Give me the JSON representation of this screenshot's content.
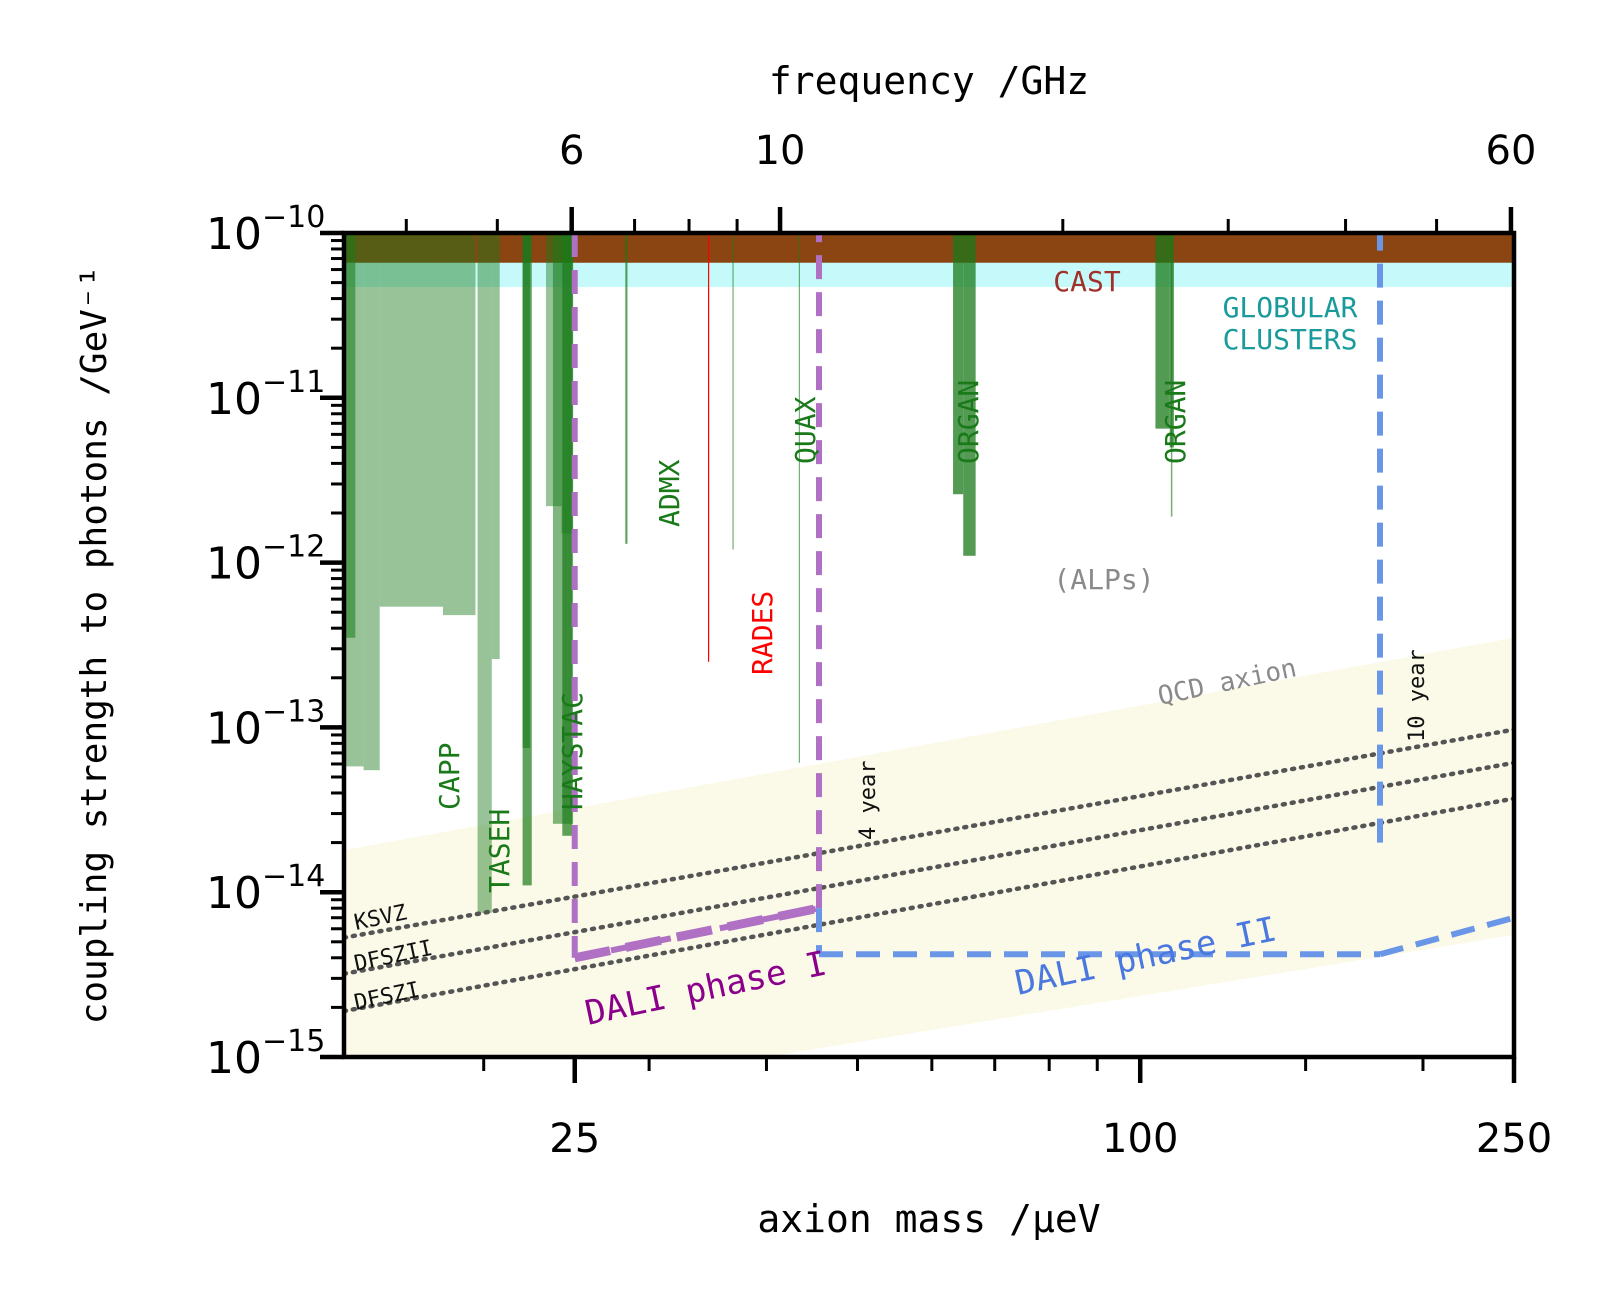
{
  "chart_data": {
    "type": "exclusion-plot",
    "title": "",
    "xlabel_bottom": "axion mass /μeV",
    "xlabel_top": "frequency /GHz",
    "ylabel": "coupling strength to photons /GeV⁻¹",
    "xscale": "log",
    "yscale": "log",
    "xlim": [
      14.2,
      250
    ],
    "ylim": [
      1e-15,
      1e-10
    ],
    "bottom_ticks": [
      {
        "value": 25,
        "label": "25"
      },
      {
        "value": 100,
        "label": "100"
      },
      {
        "value": 250,
        "label": "250"
      }
    ],
    "top_ticks": [
      {
        "value": 6,
        "label": "6"
      },
      {
        "value": 10,
        "label": "10"
      },
      {
        "value": 60,
        "label": "60"
      }
    ],
    "y_ticks": [
      {
        "exp": -10,
        "label": "10",
        "sup": "−10"
      },
      {
        "exp": -11,
        "label": "10",
        "sup": "−11"
      },
      {
        "exp": -12,
        "label": "10",
        "sup": "−12"
      },
      {
        "exp": -13,
        "label": "10",
        "sup": "−13"
      },
      {
        "exp": -14,
        "label": "10",
        "sup": "−14"
      },
      {
        "exp": -15,
        "label": "10",
        "sup": "−15"
      }
    ],
    "bands": [
      {
        "name": "CAST",
        "g_low": 6.6e-11,
        "color": "#8b4513"
      },
      {
        "name": "GLOBULAR CLUSTERS",
        "g_low": 4.7e-11,
        "color": "#c6fafa"
      }
    ],
    "qcd_band": {
      "label": "QCD axion",
      "color": "#fbfae8",
      "upper": [
        [
          14.2,
          1.8e-14
        ],
        [
          250,
          3.5e-13
        ]
      ],
      "lower": [
        [
          40,
          1e-15
        ],
        [
          250,
          5.5e-15
        ]
      ]
    },
    "model_lines": [
      {
        "name": "KSVZ",
        "points": [
          [
            14.2,
            5.3e-15
          ],
          [
            250,
            9.7e-14
          ]
        ]
      },
      {
        "name": "DFSZII",
        "points": [
          [
            14.2,
            3.2e-15
          ],
          [
            250,
            6.1e-14
          ]
        ]
      },
      {
        "name": "DFSZI",
        "points": [
          [
            14.2,
            1.9e-15
          ],
          [
            250,
            3.7e-14
          ]
        ]
      }
    ],
    "experiments": [
      {
        "name": "CAPP",
        "color": "#1a7a1a",
        "regions": [
          {
            "x": [
              14.2,
              14.9
            ],
            "g_low": 5.8e-14,
            "opacity": 0.45
          },
          {
            "x": [
              14.9,
              15.5
            ],
            "g_low": 5.5e-14,
            "opacity": 0.45
          },
          {
            "x": [
              14.2,
              14.6
            ],
            "g_low": 3.5e-13,
            "opacity": 0.55
          },
          {
            "x": [
              15.5,
              18.1
            ],
            "g_low": 5.4e-13,
            "opacity": 0.45
          },
          {
            "x": [
              18.1,
              19.6
            ],
            "g_low": 4.8e-13,
            "opacity": 0.45
          },
          {
            "x": [
              19.7,
              20.4
            ],
            "g_low": 7.5e-15,
            "opacity": 0.45
          },
          {
            "x": [
              20.4,
              20.8
            ],
            "g_low": 2.6e-13,
            "opacity": 0.45
          }
        ]
      },
      {
        "name": "TASEH",
        "color": "#1a7a1a",
        "regions": [
          {
            "x": [
              22.0,
              22.5
            ],
            "g_low": 1.1e-14,
            "opacity": 0.7
          },
          {
            "x": [
              22.0,
              22.4
            ],
            "g_low": 7.5e-14,
            "opacity": 0.6
          }
        ]
      },
      {
        "name": "HAYSTAC",
        "color": "#1a7a1a",
        "regions": [
          {
            "x": [
              23.3,
              24.2
            ],
            "g_low": 2.2e-12,
            "opacity": 0.45
          },
          {
            "x": [
              24.2,
              24.9
            ],
            "g_low": 1.5e-12,
            "opacity": 0.45
          },
          {
            "x": [
              23.7,
              24.9
            ],
            "g_low": 2.6e-14,
            "opacity": 0.55
          },
          {
            "x": [
              24.25,
              24.85
            ],
            "g_low": 2.2e-14,
            "opacity": 0.7
          }
        ]
      },
      {
        "name": "ADMX",
        "color": "#1a7a1a",
        "regions": [
          {
            "x": [
              28.3,
              28.45
            ],
            "g_low": 1.3e-12,
            "opacity": 0.7
          }
        ]
      },
      {
        "name": "RADES",
        "color": "#ff0000",
        "regions": [
          {
            "x": [
              34.66,
              34.72
            ],
            "g_low": 2.5e-13,
            "opacity": 1.0
          }
        ]
      },
      {
        "name": "QUAX",
        "color": "#1a7a1a",
        "regions": [
          {
            "x": [
              36.8,
              36.9
            ],
            "g_low": 1.2e-12,
            "opacity": 0.6
          },
          {
            "x": [
              43.3,
              43.4
            ],
            "g_low": 6.1e-14,
            "opacity": 0.6
          }
        ]
      },
      {
        "name": "ORGAN",
        "color": "#1a7a1a",
        "regions": [
          {
            "x": [
              63.2,
              64.8
            ],
            "g_low": 2.6e-12,
            "opacity": 0.75
          },
          {
            "x": [
              64.8,
              66.8
            ],
            "g_low": 1.1e-12,
            "opacity": 0.75
          },
          {
            "x": [
              103.8,
              107.5
            ],
            "g_low": 6.5e-12,
            "opacity": 0.75
          },
          {
            "x": [
              107.5,
              108.6
            ],
            "g_low": 5e-12,
            "opacity": 0.75
          },
          {
            "x": [
              107.8,
              108.2
            ],
            "g_low": 1.9e-12,
            "opacity": 0.6
          }
        ]
      }
    ],
    "sensitivity": [
      {
        "name": "DALI phase I",
        "color": "#b070c4",
        "label_color": "#8a008a",
        "segments": [
          [
            [
              25,
              1e-10
            ],
            [
              25,
              4e-15
            ]
          ],
          [
            [
              25,
              4e-15
            ],
            [
              45.5,
              8e-15
            ]
          ],
          [
            [
              45.5,
              8e-15
            ],
            [
              45.5,
              1e-10
            ]
          ]
        ],
        "annotation": "4 year"
      },
      {
        "name": "DALI phase II",
        "color": "#6a96e8",
        "label_color": "#4a78e0",
        "segments": [
          [
            [
              45.5,
              8e-15
            ],
            [
              45.5,
              4.2e-15
            ]
          ],
          [
            [
              45.5,
              4.2e-15
            ],
            [
              180,
              4.2e-15
            ]
          ],
          [
            [
              180,
              4.2e-15
            ],
            [
              250,
              7e-15
            ]
          ],
          [
            [
              180,
              2e-14
            ],
            [
              180,
              1e-10
            ]
          ]
        ],
        "annotation": "10 year"
      }
    ],
    "text_labels": [
      {
        "text": "CAST",
        "color": "#a0302a"
      },
      {
        "text": "GLOBULAR",
        "color": "#1a9a9a"
      },
      {
        "text": "CLUSTERS",
        "color": "#1a9a9a"
      },
      {
        "text": "(ALPs)",
        "color": "#8a8a8a"
      },
      {
        "text": "QCD axion",
        "color": "#8a8a8a"
      },
      {
        "text": "CAPP",
        "color": "#1a7a1a"
      },
      {
        "text": "TASEH",
        "color": "#1a7a1a"
      },
      {
        "text": "HAYSTAC",
        "color": "#1a7a1a"
      },
      {
        "text": "ADMX",
        "color": "#1a7a1a"
      },
      {
        "text": "RADES",
        "color": "#ff0000"
      },
      {
        "text": "QUAX",
        "color": "#1a7a1a"
      },
      {
        "text": "ORGAN",
        "color": "#1a7a1a"
      },
      {
        "text": "KSVZ",
        "color": "#111111"
      },
      {
        "text": "DFSZII",
        "color": "#111111"
      },
      {
        "text": "DFSZI",
        "color": "#111111"
      },
      {
        "text": "4 year",
        "color": "#111111"
      },
      {
        "text": "10 year",
        "color": "#111111"
      },
      {
        "text": "DALI phase I",
        "color": "#8a008a"
      },
      {
        "text": "DALI phase II",
        "color": "#4a78e0"
      }
    ]
  }
}
